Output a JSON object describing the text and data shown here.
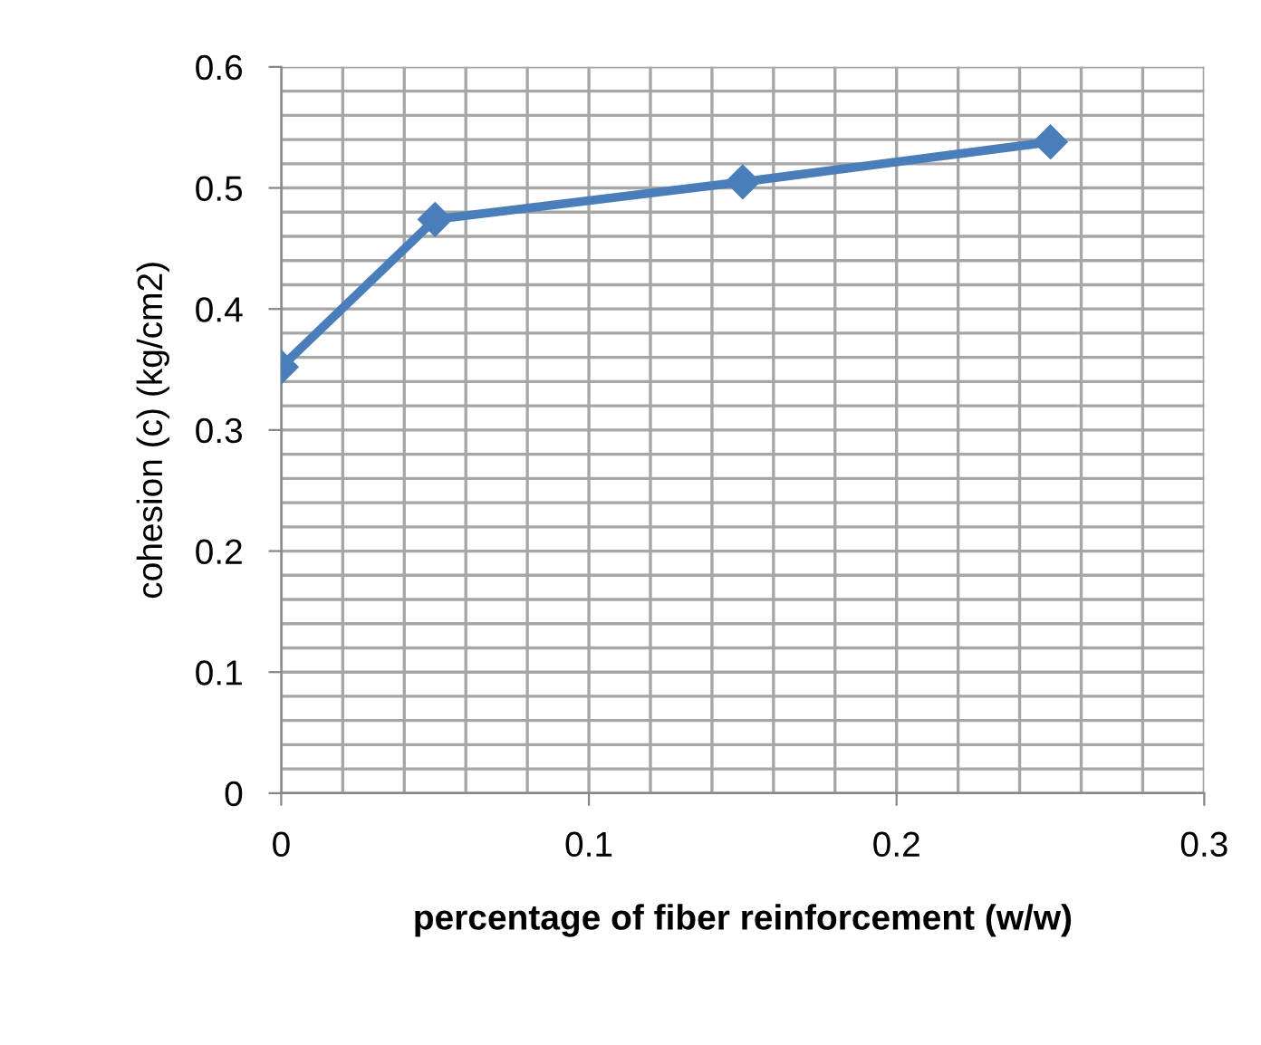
{
  "chart_data": {
    "type": "line",
    "xlabel": "percentage of fiber reinforcement (w/w)",
    "ylabel": "cohesion (c) (kg/cm2)",
    "x": [
      0,
      0.05,
      0.15,
      0.25
    ],
    "series": [
      {
        "color": "#4a7ebb",
        "values": [
          0.352,
          0.474,
          0.505,
          0.538
        ]
      }
    ],
    "xlim": [
      0,
      0.3
    ],
    "xticks": [
      0,
      0.1,
      0.2,
      0.3
    ],
    "ylim": [
      0,
      0.6
    ],
    "yticks": [
      0,
      0.1,
      0.2,
      0.3,
      0.4,
      0.5,
      0.6
    ],
    "grid": true,
    "marker": "diamond",
    "line_style": "solid",
    "legend": false
  }
}
